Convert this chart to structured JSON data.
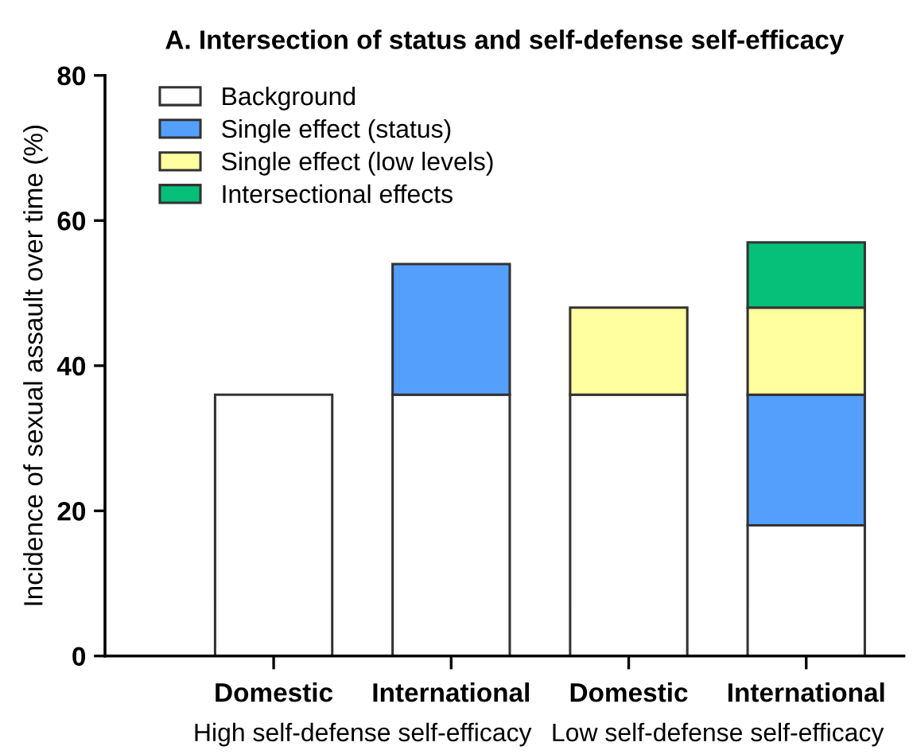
{
  "chart_data": {
    "type": "bar",
    "stacked": true,
    "title": "A. Intersection of status and self-defense self-efficacy",
    "ylabel": "Incidence of sexual assault over time (%)",
    "categories": [
      "Domestic",
      "International",
      "Domestic",
      "International"
    ],
    "series": [
      {
        "name": "Background",
        "color": "#ffffff",
        "values": [
          36,
          36,
          36,
          18
        ]
      },
      {
        "name": "Single effect (status)",
        "color": "#559ffc",
        "values": [
          null,
          18,
          null,
          18
        ]
      },
      {
        "name": "Single effect (low levels)",
        "color": "#ffff9f",
        "values": [
          null,
          null,
          12,
          12
        ]
      },
      {
        "name": "Intersectional effects",
        "color": "#06bf78",
        "values": [
          null,
          null,
          null,
          9
        ]
      }
    ],
    "annotations": [
      "High self-defense self-efficacy",
      "Low self-defense self-efficacy"
    ],
    "ylim": [
      0,
      80
    ],
    "yticks": [
      0,
      20,
      40,
      60,
      80
    ],
    "grid": false,
    "legend": "top left"
  }
}
